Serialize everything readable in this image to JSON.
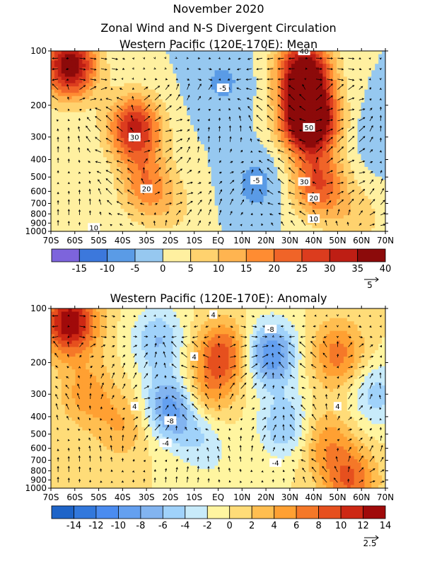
{
  "header": {
    "line1": "November 2020",
    "line2": "Zonal Wind and N-S Divergent Circulation"
  },
  "chart_data": [
    {
      "type": "heatmap",
      "title": "Western Pacific (120E-170E): Mean",
      "x_ticks": [
        "70S",
        "60S",
        "50S",
        "40S",
        "30S",
        "20S",
        "10S",
        "EQ",
        "10N",
        "20N",
        "30N",
        "40N",
        "50N",
        "60N",
        "70N"
      ],
      "x_values": [
        -70,
        -60,
        -50,
        -40,
        -30,
        -20,
        -10,
        0,
        10,
        20,
        30,
        40,
        50,
        60,
        70
      ],
      "y_ticks": [
        "100",
        "200",
        "300",
        "400",
        "500",
        "600",
        "700",
        "800",
        "900",
        "1000"
      ],
      "y_values_hpa": [
        100,
        200,
        300,
        400,
        500,
        600,
        700,
        800,
        900,
        1000
      ],
      "xlim": [
        -70,
        70
      ],
      "ylim_hpa": [
        1000,
        100
      ],
      "y_scale": "log",
      "contour_labels": [
        "40",
        "30",
        "50",
        "30",
        "20",
        "20",
        "10",
        "10",
        "-5",
        "-5"
      ],
      "colorbar": {
        "labels": [
          "-15",
          "-10",
          "-5",
          "0",
          "5",
          "10",
          "15",
          "20",
          "25",
          "30",
          "35",
          "40"
        ],
        "colors": [
          "#7d64dc",
          "#3c78dc",
          "#5a9be6",
          "#96c8f0",
          "#fff0a0",
          "#ffd26e",
          "#ffb450",
          "#ff8c32",
          "#f06428",
          "#dc3c1e",
          "#be1e14",
          "#8c0a0a"
        ]
      },
      "vector_reference": "5",
      "features": [
        {
          "x": -35,
          "p": 270,
          "value": 32
        },
        {
          "x": -62,
          "p": 120,
          "value": 40
        },
        {
          "x": -30,
          "p": 560,
          "value": 18
        },
        {
          "x": 38,
          "p": 240,
          "value": 58
        },
        {
          "x": 36,
          "p": 130,
          "value": 42
        },
        {
          "x": 42,
          "p": 550,
          "value": 25
        },
        {
          "x": 2,
          "p": 150,
          "value": -6
        },
        {
          "x": 16,
          "p": 550,
          "value": -7
        },
        {
          "x": -18,
          "p": 750,
          "value": 5
        },
        {
          "x": 68,
          "p": 300,
          "value": -4
        },
        {
          "x": 58,
          "p": 850,
          "value": 8
        }
      ]
    },
    {
      "type": "heatmap",
      "title": "Western Pacific (120E-170E): Anomaly",
      "x_ticks": [
        "70S",
        "60S",
        "50S",
        "40S",
        "30S",
        "20S",
        "10S",
        "EQ",
        "10N",
        "20N",
        "30N",
        "40N",
        "50N",
        "60N",
        "70N"
      ],
      "x_values": [
        -70,
        -60,
        -50,
        -40,
        -30,
        -20,
        -10,
        0,
        10,
        20,
        30,
        40,
        50,
        60,
        70
      ],
      "y_ticks": [
        "100",
        "200",
        "300",
        "400",
        "500",
        "600",
        "700",
        "800",
        "900",
        "1000"
      ],
      "y_values_hpa": [
        100,
        200,
        300,
        400,
        500,
        600,
        700,
        800,
        900,
        1000
      ],
      "xlim": [
        -70,
        70
      ],
      "ylim_hpa": [
        1000,
        100
      ],
      "y_scale": "log",
      "contour_labels": [
        "4",
        "-8",
        "4",
        "4",
        "4",
        "-8",
        "-4",
        "-4"
      ],
      "colorbar": {
        "labels": [
          "-14",
          "-12",
          "-10",
          "-8",
          "-6",
          "-4",
          "-2",
          "0",
          "2",
          "4",
          "6",
          "8",
          "10",
          "12",
          "14"
        ],
        "colors": [
          "#1e64c8",
          "#3278dc",
          "#4b8cf0",
          "#64a0f0",
          "#82b4f0",
          "#a0d2fa",
          "#c8ebfa",
          "#fff5a0",
          "#ffdc78",
          "#ffbe50",
          "#ffa032",
          "#f57828",
          "#e6501e",
          "#cd2814",
          "#a00a0a"
        ]
      },
      "vector_reference": "2.5",
      "features": [
        {
          "x": -62,
          "p": 120,
          "value": 14
        },
        {
          "x": -55,
          "p": 300,
          "value": 5
        },
        {
          "x": -40,
          "p": 450,
          "value": 4
        },
        {
          "x": -20,
          "p": 350,
          "value": -9
        },
        {
          "x": -25,
          "p": 150,
          "value": -6
        },
        {
          "x": -8,
          "p": 500,
          "value": -4
        },
        {
          "x": 2,
          "p": 180,
          "value": 9
        },
        {
          "x": -5,
          "p": 300,
          "value": 5
        },
        {
          "x": 22,
          "p": 180,
          "value": -10
        },
        {
          "x": 28,
          "p": 450,
          "value": -6
        },
        {
          "x": 50,
          "p": 180,
          "value": 7
        },
        {
          "x": 45,
          "p": 550,
          "value": 5
        },
        {
          "x": 66,
          "p": 300,
          "value": -5
        },
        {
          "x": 55,
          "p": 900,
          "value": 8
        },
        {
          "x": 0,
          "p": 800,
          "value": -1
        }
      ]
    }
  ]
}
